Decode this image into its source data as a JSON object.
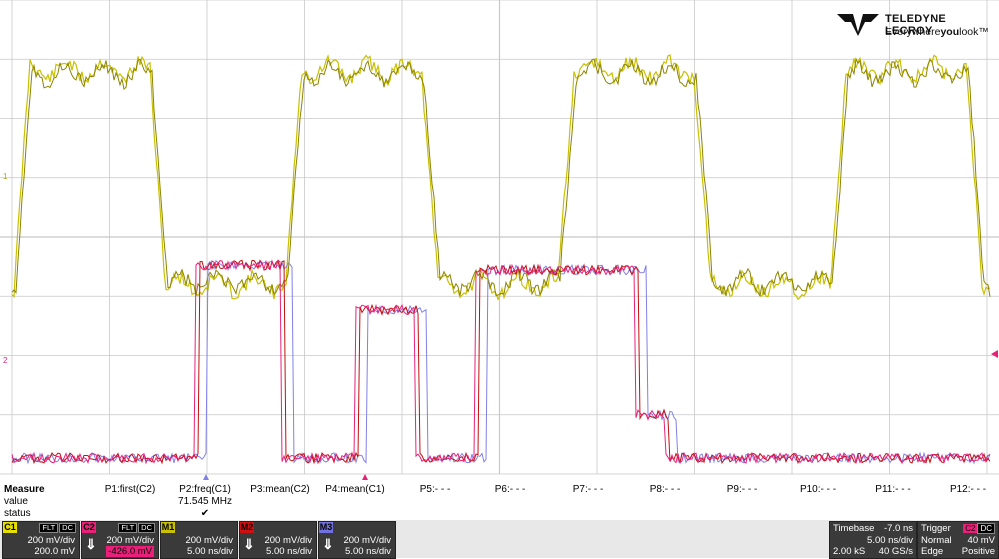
{
  "brand": {
    "name": "TELEDYNE LECROY",
    "tagline_prefix": "Everywhere",
    "tagline_bold": "you",
    "tagline_suffix": "look",
    "trademark": "™"
  },
  "colors": {
    "c1": "#b4a800",
    "c2": "#e8207a",
    "m1": "#b4a800",
    "m2": "#c01010",
    "m3": "#8080e8",
    "grid": "#c8c8c8",
    "panel": "#3a3a3a"
  },
  "trace_labels": {
    "c1": "1",
    "c2": "2"
  },
  "grid": {
    "divisions_x": 10,
    "divisions_y": 8
  },
  "measure": {
    "label": "Measure",
    "row_labels": [
      "value",
      "status"
    ],
    "params": [
      {
        "name": "P1:first(C2)",
        "value": "",
        "status": ""
      },
      {
        "name": "P2:freq(C1)",
        "value": "71.545 MHz",
        "status": "✔"
      },
      {
        "name": "P3:mean(C2)",
        "value": "",
        "status": ""
      },
      {
        "name": "P4:mean(C1)",
        "value": "",
        "status": ""
      },
      {
        "name": "P5:- - -",
        "value": "",
        "status": ""
      },
      {
        "name": "P6:- - -",
        "value": "",
        "status": ""
      },
      {
        "name": "P7:- - -",
        "value": "",
        "status": ""
      },
      {
        "name": "P8:- - -",
        "value": "",
        "status": ""
      },
      {
        "name": "P9:- - -",
        "value": "",
        "status": ""
      },
      {
        "name": "P10:- - -",
        "value": "",
        "status": ""
      },
      {
        "name": "P11:- - -",
        "value": "",
        "status": ""
      },
      {
        "name": "P12:- - -",
        "value": "",
        "status": ""
      }
    ]
  },
  "channels": [
    {
      "id": "C1",
      "color": "#e8e000",
      "badges": [
        "FLT",
        "DC"
      ],
      "scale": "200 mV/div",
      "offset": "200.0 mV",
      "arrow": ""
    },
    {
      "id": "C2",
      "color": "#e8207a",
      "badges": [
        "FLT",
        "DC"
      ],
      "scale": "200 mV/div",
      "offset": "-426.0 mV",
      "arrow": "⇓"
    },
    {
      "id": "M1",
      "color": "#c8c000",
      "badges": [],
      "scale": "200 mV/div",
      "offset": "5.00 ns/div",
      "arrow": ""
    },
    {
      "id": "M2",
      "color": "#d01010",
      "badges": [],
      "scale": "200 mV/div",
      "offset": "5.00 ns/div",
      "arrow": "⇓"
    },
    {
      "id": "M3",
      "color": "#7070e0",
      "badges": [],
      "scale": "200 mV/div",
      "offset": "5.00 ns/div",
      "arrow": "⇓"
    }
  ],
  "timebase": {
    "label": "Timebase",
    "delay": "-7.0 ns",
    "scale": "5.00 ns/div",
    "samples": "2.00 kS",
    "rate": "40 GS/s"
  },
  "trigger": {
    "label": "Trigger",
    "source": "C2",
    "coupling": "DC",
    "mode": "Normal",
    "level": "40 mV",
    "type": "Edge",
    "slope": "Positive"
  }
}
